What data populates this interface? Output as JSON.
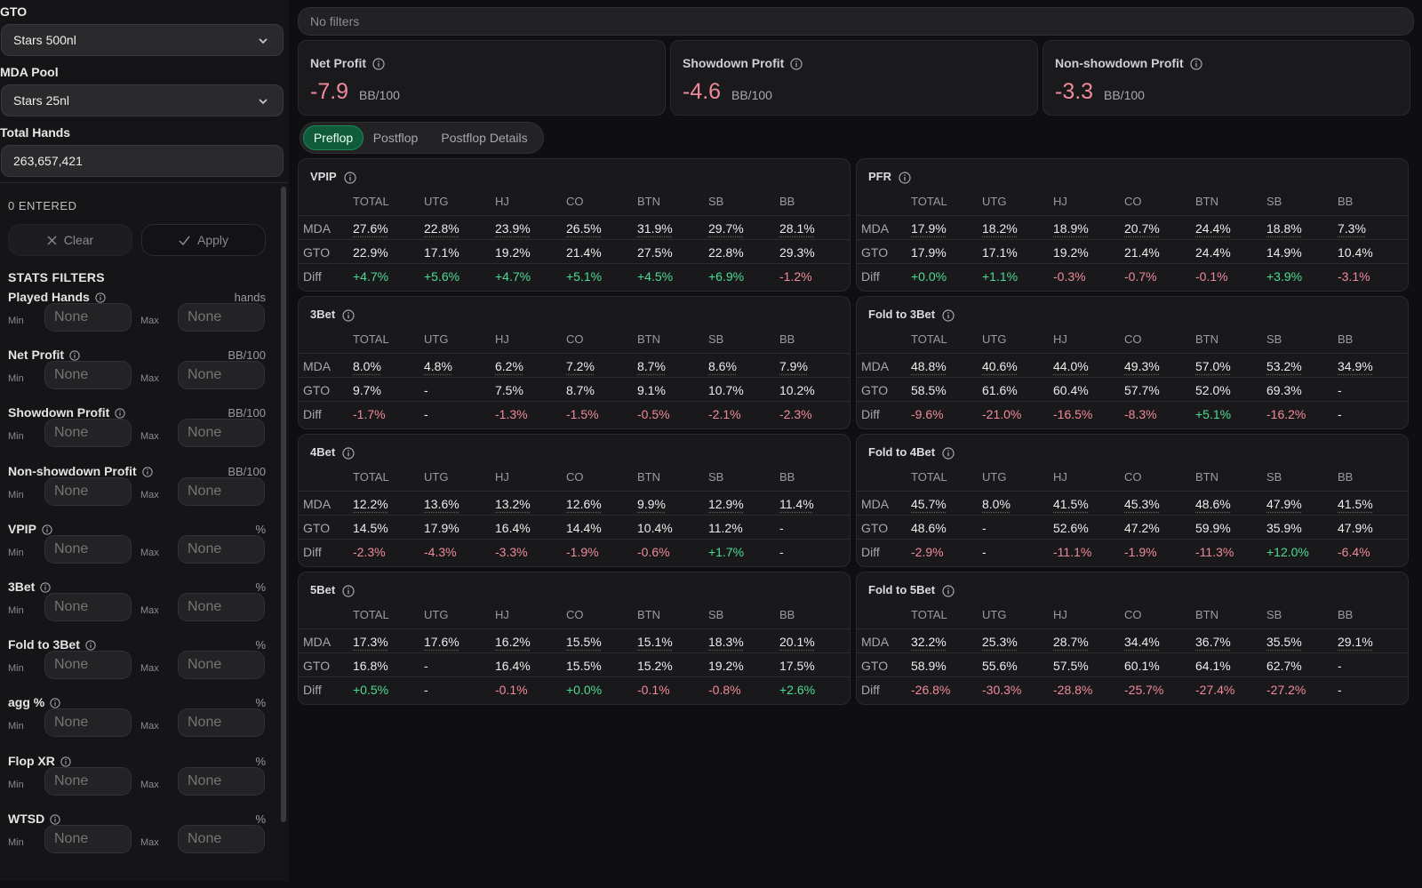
{
  "sidebar": {
    "gto_label": "GTO",
    "gto_value": "Stars 500nl",
    "mda_label": "MDA Pool",
    "mda_value": "Stars 25nl",
    "hands_label": "Total Hands",
    "hands_value": "263,657,421",
    "entered": "0 ENTERED",
    "clear_label": "Clear",
    "apply_label": "Apply",
    "stats_heading": "STATS FILTERS",
    "min_label": "Min",
    "max_label": "Max",
    "placeholder": "None",
    "filters": [
      {
        "name": "Played Hands",
        "unit": "hands"
      },
      {
        "name": "Net Profit",
        "unit": "BB/100"
      },
      {
        "name": "Showdown Profit",
        "unit": "BB/100"
      },
      {
        "name": "Non-showdown Profit",
        "unit": "BB/100"
      },
      {
        "name": "VPIP",
        "unit": "%"
      },
      {
        "name": "3Bet",
        "unit": "%"
      },
      {
        "name": "Fold to 3Bet",
        "unit": "%"
      },
      {
        "name": "agg %",
        "unit": "%"
      },
      {
        "name": "Flop XR",
        "unit": "%"
      },
      {
        "name": "WTSD",
        "unit": "%"
      }
    ]
  },
  "filters_bar": "No filters",
  "summary": [
    {
      "title": "Net Profit",
      "value": "-7.9",
      "unit": "BB/100"
    },
    {
      "title": "Showdown Profit",
      "value": "-4.6",
      "unit": "BB/100"
    },
    {
      "title": "Non-showdown Profit",
      "value": "-3.3",
      "unit": "BB/100"
    }
  ],
  "tabs": [
    "Preflop",
    "Postflop",
    "Postflop Details"
  ],
  "active_tab": "Preflop",
  "columns": [
    "TOTAL",
    "UTG",
    "HJ",
    "CO",
    "BTN",
    "SB",
    "BB"
  ],
  "row_labels": [
    "MDA",
    "GTO",
    "Diff"
  ],
  "colors": {
    "positive": "#4ddb94",
    "negative": "#f08a9a",
    "accent": "#0f5b3a"
  },
  "panels": [
    {
      "title": "VPIP",
      "mda": [
        "27.6%",
        "22.8%",
        "23.9%",
        "26.5%",
        "31.9%",
        "29.7%",
        "28.1%"
      ],
      "gto": [
        "22.9%",
        "17.1%",
        "19.2%",
        "21.4%",
        "27.5%",
        "22.8%",
        "29.3%"
      ],
      "diff": [
        "+4.7%",
        "+5.6%",
        "+4.7%",
        "+5.1%",
        "+4.5%",
        "+6.9%",
        "-1.2%"
      ]
    },
    {
      "title": "PFR",
      "mda": [
        "17.9%",
        "18.2%",
        "18.9%",
        "20.7%",
        "24.4%",
        "18.8%",
        "7.3%"
      ],
      "gto": [
        "17.9%",
        "17.1%",
        "19.2%",
        "21.4%",
        "24.4%",
        "14.9%",
        "10.4%"
      ],
      "diff": [
        "+0.0%",
        "+1.1%",
        "-0.3%",
        "-0.7%",
        "-0.1%",
        "+3.9%",
        "-3.1%"
      ]
    },
    {
      "title": "3Bet",
      "mda": [
        "8.0%",
        "4.8%",
        "6.2%",
        "7.2%",
        "8.7%",
        "8.6%",
        "7.9%"
      ],
      "gto": [
        "9.7%",
        "-",
        "7.5%",
        "8.7%",
        "9.1%",
        "10.7%",
        "10.2%"
      ],
      "diff": [
        "-1.7%",
        "-",
        "-1.3%",
        "-1.5%",
        "-0.5%",
        "-2.1%",
        "-2.3%"
      ]
    },
    {
      "title": "Fold to 3Bet",
      "mda": [
        "48.8%",
        "40.6%",
        "44.0%",
        "49.3%",
        "57.0%",
        "53.2%",
        "34.9%"
      ],
      "gto": [
        "58.5%",
        "61.6%",
        "60.4%",
        "57.7%",
        "52.0%",
        "69.3%",
        "-"
      ],
      "diff": [
        "-9.6%",
        "-21.0%",
        "-16.5%",
        "-8.3%",
        "+5.1%",
        "-16.2%",
        "-"
      ]
    },
    {
      "title": "4Bet",
      "mda": [
        "12.2%",
        "13.6%",
        "13.2%",
        "12.6%",
        "9.9%",
        "12.9%",
        "11.4%"
      ],
      "gto": [
        "14.5%",
        "17.9%",
        "16.4%",
        "14.4%",
        "10.4%",
        "11.2%",
        "-"
      ],
      "diff": [
        "-2.3%",
        "-4.3%",
        "-3.3%",
        "-1.9%",
        "-0.6%",
        "+1.7%",
        "-"
      ]
    },
    {
      "title": "Fold to 4Bet",
      "mda": [
        "45.7%",
        "8.0%",
        "41.5%",
        "45.3%",
        "48.6%",
        "47.9%",
        "41.5%"
      ],
      "gto": [
        "48.6%",
        "-",
        "52.6%",
        "47.2%",
        "59.9%",
        "35.9%",
        "47.9%"
      ],
      "diff": [
        "-2.9%",
        "-",
        "-11.1%",
        "-1.9%",
        "-11.3%",
        "+12.0%",
        "-6.4%"
      ]
    },
    {
      "title": "5Bet",
      "mda": [
        "17.3%",
        "17.6%",
        "16.2%",
        "15.5%",
        "15.1%",
        "18.3%",
        "20.1%"
      ],
      "gto": [
        "16.8%",
        "-",
        "16.4%",
        "15.5%",
        "15.2%",
        "19.2%",
        "17.5%"
      ],
      "diff": [
        "+0.5%",
        "-",
        "-0.1%",
        "+0.0%",
        "-0.1%",
        "-0.8%",
        "+2.6%"
      ]
    },
    {
      "title": "Fold to 5Bet",
      "mda": [
        "32.2%",
        "25.3%",
        "28.7%",
        "34.4%",
        "36.7%",
        "35.5%",
        "29.1%"
      ],
      "gto": [
        "58.9%",
        "55.6%",
        "57.5%",
        "60.1%",
        "64.1%",
        "62.7%",
        "-"
      ],
      "diff": [
        "-26.8%",
        "-30.3%",
        "-28.8%",
        "-25.7%",
        "-27.4%",
        "-27.2%",
        "-"
      ]
    }
  ]
}
